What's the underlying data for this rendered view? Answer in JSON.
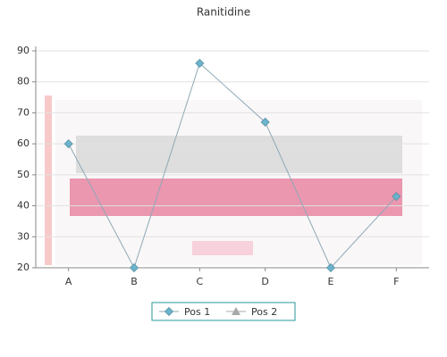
{
  "chart_data": {
    "type": "line",
    "title": "Ranitidine",
    "categories": [
      "A",
      "B",
      "C",
      "D",
      "E",
      "F"
    ],
    "series": [
      {
        "name": "Pos 1",
        "color": "#6ab4cc",
        "values": [
          60,
          20,
          86,
          67,
          20,
          43
        ]
      },
      {
        "name": "Pos 2",
        "color": "#a8a8a8",
        "values": [
          null,
          null,
          null,
          null,
          null,
          null
        ]
      }
    ],
    "ylim": [
      20,
      90
    ],
    "yticks": [
      20,
      30,
      40,
      50,
      60,
      70,
      80,
      90
    ],
    "grid": true,
    "legend": "bottom"
  }
}
